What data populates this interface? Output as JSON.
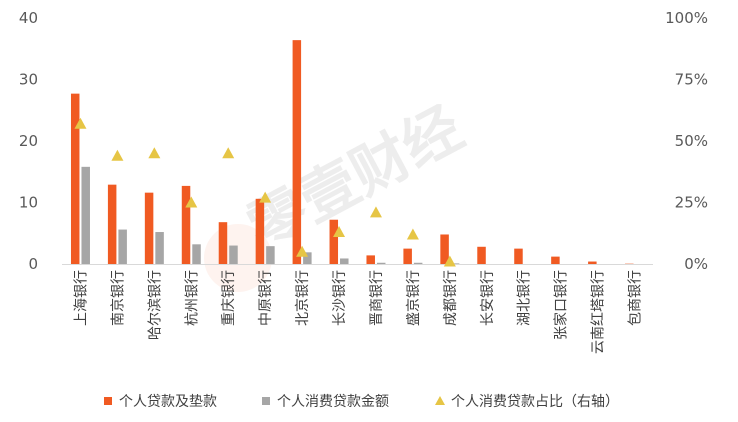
{
  "chart_data": {
    "type": "bar",
    "categories": [
      "上海银行",
      "南京银行",
      "哈尔滨银行",
      "杭州银行",
      "重庆银行",
      "中原银行",
      "北京银行",
      "长沙银行",
      "晋商银行",
      "盛京银行",
      "成都银行",
      "长安银行",
      "湖北银行",
      "张家口银行",
      "云南红塔银行",
      "包商银行"
    ],
    "series": [
      {
        "name": "个人贷款及垫款",
        "type": "bar",
        "axis": "left",
        "color": "#F05A22",
        "values": [
          27.7,
          12.9,
          11.6,
          12.7,
          6.8,
          10.6,
          36.4,
          7.2,
          1.4,
          2.5,
          4.8,
          2.8,
          2.5,
          1.2,
          0.4,
          0.05
        ]
      },
      {
        "name": "个人消费贷款金额",
        "type": "bar",
        "axis": "left",
        "color": "#A6A6A6",
        "values": [
          15.8,
          5.6,
          5.2,
          3.2,
          3.0,
          2.9,
          1.9,
          0.9,
          0.2,
          0.2,
          0.1,
          0,
          0,
          0,
          0,
          0
        ]
      },
      {
        "name": "个人消费贷款占比（右轴）",
        "type": "scatter",
        "axis": "right",
        "color": "#E6C545",
        "values": [
          57,
          44,
          45,
          25,
          45,
          27,
          5,
          13,
          21,
          12,
          1,
          null,
          null,
          null,
          null,
          null
        ]
      }
    ],
    "y_left": {
      "min": 0,
      "max": 40,
      "ticks": [
        "0",
        "10",
        "20",
        "30",
        "40"
      ]
    },
    "y_right": {
      "min": 0,
      "max": 100,
      "ticks": [
        "0%",
        "25%",
        "50%",
        "75%",
        "100%"
      ]
    },
    "legend_position": "bottom",
    "grid": false,
    "watermark": "零壹财经"
  }
}
